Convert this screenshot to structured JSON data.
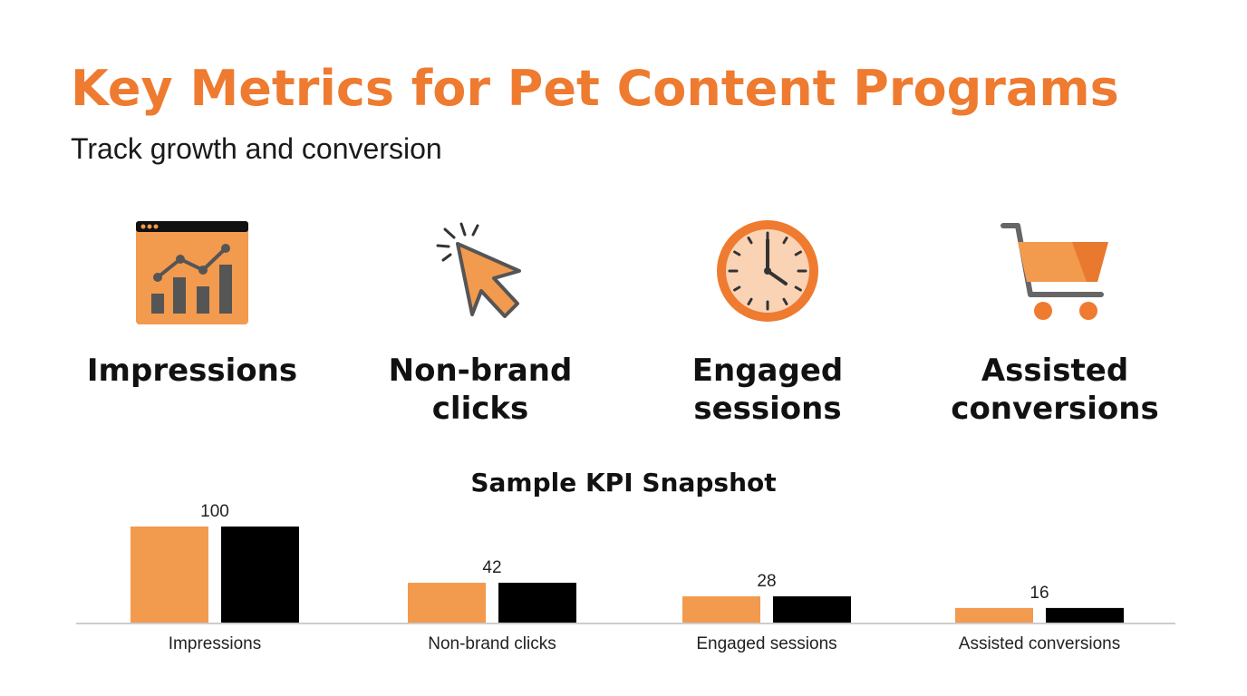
{
  "header": {
    "title": "Key Metrics for Pet Content Programs",
    "subtitle": "Track growth and conversion"
  },
  "metrics": [
    {
      "label_lines": [
        "Impressions"
      ],
      "icon": "browser-line-chart-icon"
    },
    {
      "label_lines": [
        "Non-brand",
        "clicks"
      ],
      "icon": "cursor-click-icon"
    },
    {
      "label_lines": [
        "Engaged",
        "sessions"
      ],
      "icon": "clock-icon"
    },
    {
      "label_lines": [
        "Assisted",
        "conversions"
      ],
      "icon": "shopping-cart-icon"
    }
  ],
  "colors": {
    "accent": "#EE7B30",
    "bar_primary": "#F29A4E",
    "bar_secondary": "#000000",
    "axis": "#cccccc"
  },
  "chart_data": {
    "type": "bar",
    "title": "Sample KPI Snapshot",
    "categories": [
      "Impressions",
      "Non-brand clicks",
      "Engaged sessions",
      "Assisted conversions"
    ],
    "series": [
      {
        "values": [
          100,
          42,
          28,
          16
        ]
      },
      {
        "values": [
          100,
          42,
          28,
          16
        ]
      }
    ],
    "data_labels": [
      "100",
      "42",
      "28",
      "16"
    ],
    "ylim": [
      0,
      100
    ],
    "grid": false,
    "legend": "none"
  }
}
